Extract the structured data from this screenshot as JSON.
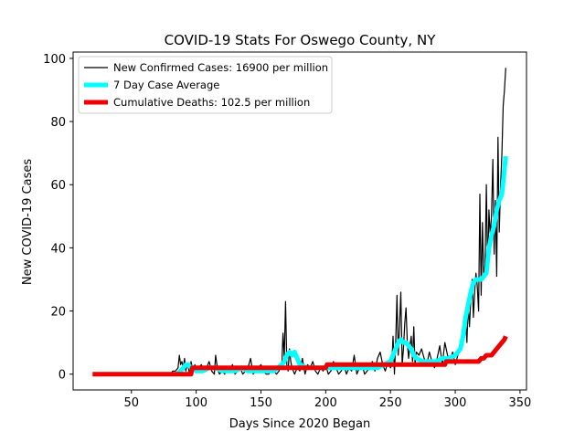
{
  "chart_data": {
    "type": "line",
    "title": "COVID-19 Stats For Oswego County, NY",
    "xlabel": "Days Since 2020 Began",
    "ylabel": "New COVID-19 Cases",
    "xlim": [
      5,
      355
    ],
    "ylim": [
      -5,
      102
    ],
    "xticks": [
      50,
      100,
      150,
      200,
      250,
      300,
      350
    ],
    "yticks": [
      0,
      20,
      40,
      60,
      80,
      100
    ],
    "grid": false,
    "legend_position": "top-left",
    "series": [
      {
        "name": "New Confirmed Cases: 16900 per million",
        "color": "#000000",
        "style": "thin",
        "x": [
          80,
          82,
          84,
          86,
          87,
          88,
          89,
          90,
          91,
          92,
          93,
          94,
          95,
          96,
          97,
          98,
          99,
          100,
          102,
          104,
          106,
          108,
          110,
          112,
          114,
          115,
          116,
          117,
          118,
          120,
          122,
          124,
          126,
          128,
          130,
          132,
          134,
          136,
          138,
          140,
          142,
          144,
          146,
          148,
          150,
          152,
          154,
          156,
          158,
          160,
          162,
          164,
          165,
          166,
          167,
          168,
          169,
          170,
          171,
          172,
          173,
          174,
          175,
          176,
          178,
          180,
          182,
          184,
          186,
          188,
          190,
          192,
          194,
          196,
          198,
          200,
          202,
          204,
          206,
          208,
          210,
          212,
          214,
          216,
          218,
          220,
          222,
          224,
          226,
          228,
          230,
          232,
          234,
          236,
          238,
          240,
          242,
          244,
          246,
          248,
          250,
          251,
          252,
          253,
          254,
          255,
          256,
          257,
          258,
          259,
          260,
          261,
          262,
          263,
          264,
          265,
          266,
          267,
          268,
          269,
          270,
          272,
          274,
          276,
          278,
          280,
          282,
          284,
          286,
          288,
          290,
          292,
          294,
          296,
          298,
          300,
          302,
          304,
          306,
          308,
          309,
          310,
          311,
          312,
          313,
          314,
          315,
          316,
          317,
          318,
          319,
          320,
          321,
          322,
          323,
          324,
          325,
          326,
          327,
          328,
          329,
          330,
          331,
          332,
          333,
          334,
          335,
          336,
          337,
          338,
          339
        ],
        "y": [
          0,
          1,
          1,
          2,
          6,
          3,
          4,
          2,
          5,
          1,
          3,
          2,
          0,
          4,
          2,
          1,
          3,
          1,
          2,
          3,
          1,
          2,
          4,
          1,
          0,
          6,
          3,
          1,
          0,
          1,
          0,
          2,
          1,
          3,
          0,
          1,
          2,
          0,
          1,
          2,
          5,
          0,
          1,
          2,
          3,
          1,
          0,
          0,
          2,
          1,
          0,
          1,
          3,
          2,
          13,
          5,
          23,
          3,
          1,
          8,
          4,
          2,
          1,
          0,
          2,
          1,
          5,
          0,
          3,
          2,
          4,
          1,
          0,
          2,
          1,
          3,
          0,
          1,
          4,
          2,
          0,
          1,
          3,
          0,
          2,
          1,
          6,
          0,
          2,
          3,
          0,
          1,
          2,
          4,
          1,
          5,
          7,
          3,
          1,
          4,
          2,
          3,
          12,
          0,
          10,
          25,
          6,
          15,
          26,
          3,
          8,
          16,
          21,
          10,
          5,
          9,
          12,
          4,
          15,
          3,
          7,
          6,
          8,
          5,
          3,
          7,
          4,
          2,
          5,
          9,
          3,
          10,
          6,
          4,
          7,
          3,
          6,
          8,
          12,
          18,
          10,
          22,
          15,
          24,
          30,
          18,
          26,
          32,
          28,
          20,
          57,
          25,
          48,
          30,
          35,
          60,
          32,
          52,
          44,
          50,
          68,
          38,
          55,
          31,
          75,
          45,
          60,
          70,
          85,
          90,
          97
        ],
        "note": ""
      },
      {
        "name": "7 Day Case Average",
        "color": "#00ffff",
        "style": "thick",
        "x": [
          85,
          88,
          90,
          92,
          94,
          96,
          98,
          100,
          105,
          110,
          115,
          120,
          125,
          130,
          135,
          140,
          145,
          150,
          155,
          160,
          163,
          166,
          168,
          170,
          172,
          174,
          176,
          178,
          180,
          185,
          190,
          195,
          200,
          205,
          210,
          215,
          220,
          225,
          230,
          235,
          240,
          245,
          250,
          252,
          254,
          256,
          258,
          260,
          262,
          264,
          266,
          268,
          270,
          275,
          280,
          285,
          290,
          295,
          300,
          304,
          306,
          308,
          310,
          312,
          314,
          316,
          318,
          320,
          322,
          324,
          326,
          328,
          330,
          332,
          334,
          336,
          338,
          339
        ],
        "y": [
          0,
          1,
          2,
          3,
          3,
          2,
          2,
          1,
          1,
          2,
          2,
          1,
          1,
          1,
          2,
          1,
          1,
          1,
          1,
          1,
          2,
          3,
          4,
          6,
          7,
          6,
          7,
          5,
          3,
          2,
          2,
          2,
          2,
          2,
          2,
          2,
          2,
          2,
          2,
          2,
          2,
          3,
          4,
          6,
          8,
          10,
          11,
          10,
          10,
          9,
          8,
          6,
          5,
          4,
          4,
          4,
          5,
          5,
          6,
          8,
          12,
          18,
          22,
          26,
          29,
          30,
          30,
          30,
          31,
          32,
          40,
          44,
          47,
          52,
          55,
          57,
          65,
          69
        ]
      },
      {
        "name": "Cumulative Deaths: 102.5 per million",
        "color": "#ee0000",
        "style": "thick",
        "x": [
          20,
          96,
          97,
          150,
          151,
          200,
          201,
          292,
          293,
          318,
          320,
          322,
          324,
          326,
          328,
          330,
          332,
          334,
          336,
          338,
          339
        ],
        "y": [
          0,
          0,
          2,
          2,
          2,
          2,
          3,
          3,
          4,
          4,
          5,
          5,
          6,
          6,
          6,
          7,
          8,
          9,
          10,
          11,
          12
        ]
      }
    ]
  }
}
